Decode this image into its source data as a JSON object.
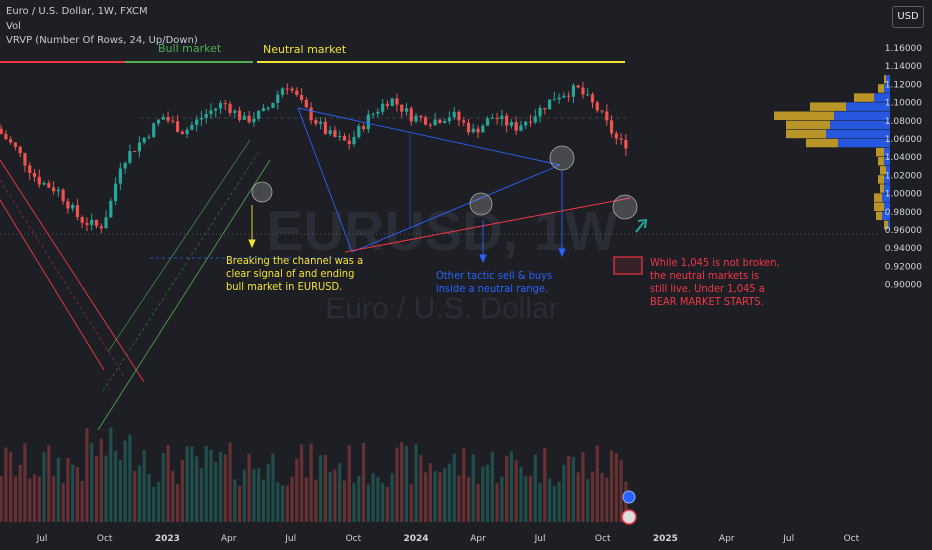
{
  "header": {
    "symbol_line": "Euro / U.S. Dollar, 1W, FXCM",
    "vol_label": "Vol",
    "vrvp_label": "VRVP (Number Of Rows, 24, Up/Down)",
    "currency_button": "USD"
  },
  "watermark": {
    "ticker": "EURUSD, 1W",
    "name": "Euro / U.S. Dollar"
  },
  "colors": {
    "up": "#26a69a",
    "down": "#ef5350",
    "yellow": "#f5e232",
    "green": "#4caf50",
    "red": "#f23645",
    "blue": "#2962ff",
    "profile_gold": "#c9a227"
  },
  "chart_data": {
    "type": "candlestick",
    "title": "Euro / U.S. Dollar, 1W, FXCM",
    "ylim": [
      0.895,
      1.175
    ],
    "y_ticks": [
      "1.16000",
      "1.14000",
      "1.12000",
      "1.10000",
      "1.08000",
      "1.06000",
      "1.04000",
      "1.02000",
      "1.00000",
      "0.98000",
      "0.96000",
      "0.94000",
      "0.92000",
      "0.90000"
    ],
    "x_ticks": [
      "Jul",
      "Oct",
      "2023",
      "Apr",
      "Jul",
      "Oct",
      "2024",
      "Apr",
      "Jul",
      "Oct",
      "2025",
      "Apr",
      "Jul",
      "Oct"
    ],
    "x_ticks_bold": [
      "2023",
      "2024",
      "2025"
    ],
    "price_path": [
      {
        "t": "2022-05",
        "p": 1.072
      },
      {
        "t": "2022-06",
        "p": 1.048
      },
      {
        "t": "2022-07",
        "p": 1.015
      },
      {
        "t": "2022-08",
        "p": 1.003
      },
      {
        "t": "2022-09",
        "p": 0.972
      },
      {
        "t": "2022-10-01",
        "p": 0.962
      },
      {
        "t": "2022-10-15",
        "p": 0.985
      },
      {
        "t": "2022-11",
        "p": 1.035
      },
      {
        "t": "2022-12",
        "p": 1.058
      },
      {
        "t": "2023-01",
        "p": 1.085
      },
      {
        "t": "2023-02",
        "p": 1.068
      },
      {
        "t": "2023-03",
        "p": 1.085
      },
      {
        "t": "2023-04",
        "p": 1.1
      },
      {
        "t": "2023-05",
        "p": 1.08
      },
      {
        "t": "2023-06",
        "p": 1.09
      },
      {
        "t": "2023-07",
        "p": 1.122
      },
      {
        "t": "2023-08",
        "p": 1.09
      },
      {
        "t": "2023-09",
        "p": 1.065
      },
      {
        "t": "2023-10",
        "p": 1.055
      },
      {
        "t": "2023-11",
        "p": 1.085
      },
      {
        "t": "2023-12",
        "p": 1.105
      },
      {
        "t": "2024-01",
        "p": 1.085
      },
      {
        "t": "2024-02",
        "p": 1.08
      },
      {
        "t": "2024-03",
        "p": 1.087
      },
      {
        "t": "2024-04",
        "p": 1.068
      },
      {
        "t": "2024-05",
        "p": 1.085
      },
      {
        "t": "2024-06",
        "p": 1.072
      },
      {
        "t": "2024-07",
        "p": 1.088
      },
      {
        "t": "2024-08",
        "p": 1.108
      },
      {
        "t": "2024-09",
        "p": 1.115
      },
      {
        "t": "2024-10",
        "p": 1.092
      },
      {
        "t": "2024-11",
        "p": 1.055
      }
    ],
    "volume_profile": [
      {
        "price": 1.125,
        "up": 1,
        "down": 2
      },
      {
        "price": 1.115,
        "up": 3,
        "down": 3
      },
      {
        "price": 1.105,
        "up": 10,
        "down": 8
      },
      {
        "price": 1.095,
        "up": 18,
        "down": 22
      },
      {
        "price": 1.085,
        "up": 30,
        "down": 28
      },
      {
        "price": 1.075,
        "up": 22,
        "down": 30
      },
      {
        "price": 1.065,
        "up": 20,
        "down": 32
      },
      {
        "price": 1.055,
        "up": 16,
        "down": 26
      },
      {
        "price": 1.045,
        "up": 4,
        "down": 3
      },
      {
        "price": 1.035,
        "up": 3,
        "down": 3
      },
      {
        "price": 1.025,
        "up": 3,
        "down": 2
      },
      {
        "price": 1.015,
        "up": 3,
        "down": 3
      },
      {
        "price": 1.005,
        "up": 2,
        "down": 3
      },
      {
        "price": 0.995,
        "up": 4,
        "down": 4
      },
      {
        "price": 0.985,
        "up": 5,
        "down": 3
      },
      {
        "price": 0.975,
        "up": 3,
        "down": 4
      },
      {
        "price": 0.965,
        "up": 2,
        "down": 1
      },
      {
        "price": 0.955,
        "up": 0,
        "down": 0
      }
    ]
  },
  "annotations": {
    "bull_market": "Bull market",
    "neutral_market": "Neutral market",
    "channel_note": [
      "Breaking the channel was a",
      "clear signal of and ending",
      "bull market in EURUSD."
    ],
    "tactic_note": [
      "Other tactic sell & buys",
      "inside a neutral range."
    ],
    "bear_note": [
      "While 1,045 is not broken,",
      "the neutral markets is",
      "still live.  Under 1,045 a",
      "BEAR MARKET STARTS."
    ]
  }
}
